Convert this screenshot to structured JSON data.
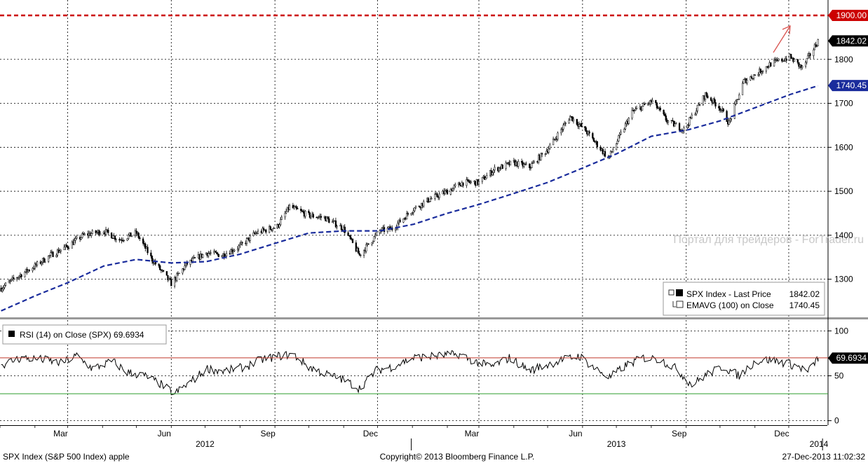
{
  "chart_data": [
    {
      "type": "line",
      "subtype": "candlestick-with-moving-average",
      "x_range": [
        "2012-01-01",
        "2014-01-03"
      ],
      "ylim": [
        1215,
        1935
      ],
      "y_ticks": [
        1300,
        1400,
        1500,
        1600,
        1700,
        1800
      ],
      "grid": true,
      "legend_position": "bottom-right",
      "legend": [
        {
          "text": "SPX Index - Last Price",
          "value": "1842.02"
        },
        {
          "text": "EMAVG (100) on Close",
          "value": "1740.45"
        }
      ],
      "reference_line": {
        "value": 1900,
        "label": "1900.00",
        "color": "#cc0000",
        "style": "dashed"
      },
      "badges": [
        {
          "label": "1900.00",
          "value": 1900,
          "bg": "#cc0000",
          "fg": "#ffffff"
        },
        {
          "label": "1842.02",
          "value": 1842.02,
          "bg": "#000000",
          "fg": "#ffffff"
        },
        {
          "label": "1740.45",
          "value": 1740.45,
          "bg": "#1a2c9c",
          "fg": "#ffffff"
        }
      ],
      "series": [
        {
          "kind": "price",
          "color": "#000000",
          "x": [
            "2012-01-02",
            "2012-01-16",
            "2012-02-01",
            "2012-02-15",
            "2012-03-01",
            "2012-03-15",
            "2012-04-02",
            "2012-04-16",
            "2012-05-01",
            "2012-05-15",
            "2012-06-01",
            "2012-06-15",
            "2012-07-02",
            "2012-07-16",
            "2012-08-01",
            "2012-08-15",
            "2012-09-03",
            "2012-09-14",
            "2012-10-01",
            "2012-10-15",
            "2012-11-01",
            "2012-11-15",
            "2012-12-03",
            "2012-12-14",
            "2013-01-02",
            "2013-01-15",
            "2013-02-01",
            "2013-02-15",
            "2013-03-01",
            "2013-03-15",
            "2013-04-01",
            "2013-04-15",
            "2013-05-01",
            "2013-05-21",
            "2013-06-03",
            "2013-06-24",
            "2013-07-01",
            "2013-07-15",
            "2013-08-02",
            "2013-08-15",
            "2013-08-30",
            "2013-09-18",
            "2013-10-01",
            "2013-10-09",
            "2013-10-22",
            "2013-11-01",
            "2013-11-15",
            "2013-12-02",
            "2013-12-13",
            "2013-12-27"
          ],
          "values": [
            1280,
            1305,
            1330,
            1355,
            1375,
            1400,
            1410,
            1390,
            1405,
            1345,
            1290,
            1335,
            1360,
            1355,
            1375,
            1405,
            1420,
            1465,
            1445,
            1440,
            1415,
            1355,
            1410,
            1415,
            1460,
            1480,
            1500,
            1520,
            1520,
            1550,
            1565,
            1555,
            1595,
            1670,
            1640,
            1575,
            1610,
            1680,
            1705,
            1660,
            1640,
            1720,
            1690,
            1655,
            1750,
            1765,
            1790,
            1805,
            1780,
            1842
          ]
        },
        {
          "kind": "ema",
          "name": "EMAVG (100) on Close",
          "color": "#1a2c9c",
          "x": [
            "2012-01-02",
            "2012-02-01",
            "2012-03-01",
            "2012-04-02",
            "2012-05-01",
            "2012-06-01",
            "2012-07-02",
            "2012-08-01",
            "2012-09-03",
            "2012-10-01",
            "2012-11-01",
            "2012-12-03",
            "2013-01-02",
            "2013-02-01",
            "2013-03-01",
            "2013-04-01",
            "2013-05-01",
            "2013-06-03",
            "2013-07-01",
            "2013-08-01",
            "2013-09-03",
            "2013-10-01",
            "2013-11-01",
            "2013-12-02",
            "2013-12-27"
          ],
          "values": [
            1228,
            1262,
            1292,
            1330,
            1345,
            1337,
            1340,
            1357,
            1383,
            1405,
            1410,
            1410,
            1425,
            1450,
            1470,
            1495,
            1520,
            1555,
            1585,
            1625,
            1640,
            1660,
            1690,
            1720,
            1740
          ]
        }
      ]
    },
    {
      "type": "line",
      "title": "RSI (14) on Close (SPX) 69.6934",
      "ylim": [
        -5,
        112
      ],
      "y_ticks": [
        0,
        50,
        100
      ],
      "reference_lines": [
        {
          "value": 70,
          "color": "#c0392b"
        },
        {
          "value": 30,
          "color": "#2e9e2e"
        }
      ],
      "badges": [
        {
          "label": "69.6934",
          "value": 69.6934,
          "bg": "#000000",
          "fg": "#ffffff"
        }
      ],
      "series": [
        {
          "kind": "rsi",
          "color": "#000000",
          "x": [
            "2012-01-02",
            "2012-01-20",
            "2012-02-08",
            "2012-02-24",
            "2012-03-09",
            "2012-03-23",
            "2012-04-10",
            "2012-04-23",
            "2012-05-08",
            "2012-05-21",
            "2012-06-04",
            "2012-06-19",
            "2012-07-03",
            "2012-07-18",
            "2012-08-06",
            "2012-08-20",
            "2012-09-05",
            "2012-09-17",
            "2012-10-01",
            "2012-10-16",
            "2012-10-31",
            "2012-11-15",
            "2012-11-30",
            "2012-12-14",
            "2013-01-02",
            "2013-01-22",
            "2013-02-11",
            "2013-02-25",
            "2013-03-12",
            "2013-03-28",
            "2013-04-15",
            "2013-04-30",
            "2013-05-15",
            "2013-05-29",
            "2013-06-12",
            "2013-06-25",
            "2013-07-10",
            "2013-07-25",
            "2013-08-09",
            "2013-08-23",
            "2013-09-06",
            "2013-09-20",
            "2013-10-04",
            "2013-10-18",
            "2013-11-01",
            "2013-11-15",
            "2013-11-29",
            "2013-12-10",
            "2013-12-18",
            "2013-12-27"
          ],
          "values": [
            62,
            70,
            68,
            64,
            72,
            58,
            66,
            54,
            50,
            42,
            30,
            44,
            58,
            55,
            60,
            68,
            72,
            74,
            60,
            52,
            46,
            36,
            56,
            60,
            70,
            72,
            74,
            66,
            60,
            70,
            56,
            62,
            68,
            72,
            58,
            48,
            62,
            70,
            68,
            58,
            40,
            52,
            60,
            50,
            66,
            68,
            64,
            60,
            54,
            69.69
          ]
        }
      ]
    }
  ],
  "xaxis": {
    "months": [
      {
        "date": "2012-03-01",
        "label": "Mar"
      },
      {
        "date": "2012-06-01",
        "label": "Jun"
      },
      {
        "date": "2012-09-01",
        "label": "Sep"
      },
      {
        "date": "2012-12-01",
        "label": "Dec"
      },
      {
        "date": "2013-03-01",
        "label": "Mar"
      },
      {
        "date": "2013-06-01",
        "label": "Jun"
      },
      {
        "date": "2013-09-01",
        "label": "Sep"
      },
      {
        "date": "2013-12-01",
        "label": "Dec"
      }
    ],
    "years": [
      {
        "date": "2012-07-01",
        "label": "2012"
      },
      {
        "date": "2013-07-01",
        "label": "2013"
      },
      {
        "date": "2014-01-15",
        "label": "2014"
      }
    ],
    "year_separators": [
      "2012-12-31",
      "2013-12-31"
    ]
  },
  "watermark": "Портал для трейдеров - ForTrader.ru",
  "footer": {
    "left": "SPX Index (S&P 500 Index) apple",
    "center": "Copyright© 2013 Bloomberg Finance L.P.",
    "right": "27-Dec-2013 11:02:32"
  },
  "colors": {
    "gridline": "#000000",
    "panel_divider": "#888888",
    "arrow": "#d9534f"
  }
}
